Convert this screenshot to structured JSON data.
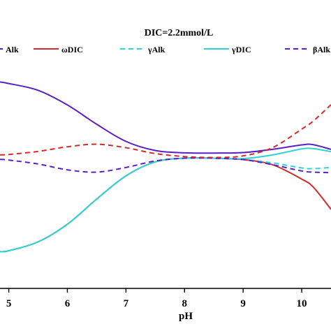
{
  "chart_data": {
    "type": "line",
    "title": "DIC=2.2mmol/L",
    "xlabel": "pH",
    "ylabel": "",
    "xlim": [
      4.85,
      10.5
    ],
    "ylim": [
      0,
      1
    ],
    "xticks": [
      5,
      6,
      7,
      8,
      9,
      10
    ],
    "grid": false,
    "legend_position": "top",
    "legend_entries": [
      "ωAlk",
      "ωDIC",
      "γAlk",
      "γDIC",
      "βAlk"
    ],
    "legend_visible_labels": [
      "Alk",
      "ωDIC",
      "γAlk",
      "γDIC",
      "βAlk"
    ],
    "series": [
      {
        "name": "ωAlk",
        "color": "#5a1fc8",
        "dash": "solid",
        "x": [
          4.85,
          5.0,
          5.5,
          6.0,
          6.5,
          7.0,
          7.5,
          8.0,
          8.5,
          9.0,
          9.5,
          10.0,
          10.2,
          10.5
        ],
        "y": [
          0.888,
          0.881,
          0.852,
          0.789,
          0.706,
          0.632,
          0.593,
          0.583,
          0.582,
          0.584,
          0.598,
          0.617,
          0.618,
          0.598
        ]
      },
      {
        "name": "ωDIC",
        "color": "#d42a2a",
        "dash": "solid",
        "x": [
          4.85,
          5.0,
          5.5,
          6.0,
          6.5,
          7.0,
          7.5,
          8.0,
          8.5,
          9.0,
          9.5,
          10.0,
          10.2,
          10.5
        ],
        "y": [
          0.158,
          0.162,
          0.2,
          0.276,
          0.384,
          0.484,
          0.544,
          0.56,
          0.56,
          0.554,
          0.532,
          0.47,
          0.435,
          0.34
        ]
      },
      {
        "name": "γAlk",
        "color": "#2fd3d3",
        "dash": "dashed",
        "x": [
          4.85,
          5.0,
          5.5,
          6.0,
          6.5,
          7.0,
          7.5,
          8.0,
          8.5,
          9.0,
          9.5,
          10.0,
          10.2,
          10.5
        ],
        "y": [
          0.158,
          0.162,
          0.2,
          0.276,
          0.384,
          0.484,
          0.544,
          0.56,
          0.56,
          0.554,
          0.54,
          0.518,
          0.515,
          0.52
        ]
      },
      {
        "name": "γDIC",
        "color": "#2fd3d3",
        "dash": "solid",
        "x": [
          4.85,
          5.0,
          5.5,
          6.0,
          6.5,
          7.0,
          7.5,
          8.0,
          8.5,
          9.0,
          9.5,
          10.0,
          10.2,
          10.5
        ],
        "y": [
          0.158,
          0.162,
          0.2,
          0.276,
          0.384,
          0.484,
          0.544,
          0.56,
          0.56,
          0.558,
          0.574,
          0.6,
          0.601,
          0.588
        ]
      },
      {
        "name": "βAlk",
        "color": "#5a1fc8",
        "dash": "dashed",
        "x": [
          4.85,
          5.0,
          5.5,
          6.0,
          6.5,
          7.0,
          7.5,
          8.0,
          8.5,
          9.0,
          9.5,
          10.0,
          10.2,
          10.5
        ],
        "y": [
          0.555,
          0.552,
          0.535,
          0.51,
          0.5,
          0.52,
          0.548,
          0.56,
          0.56,
          0.554,
          0.532,
          0.505,
          0.5,
          0.498
        ]
      },
      {
        "name": "",
        "color": "#d42a2a",
        "dash": "dashed",
        "x": [
          4.85,
          5.0,
          5.5,
          6.0,
          6.5,
          7.0,
          7.5,
          8.0,
          8.5,
          9.0,
          9.5,
          10.0,
          10.2,
          10.5
        ],
        "y": [
          0.574,
          0.576,
          0.589,
          0.609,
          0.62,
          0.605,
          0.58,
          0.567,
          0.563,
          0.57,
          0.605,
          0.685,
          0.72,
          0.79
        ]
      }
    ]
  }
}
